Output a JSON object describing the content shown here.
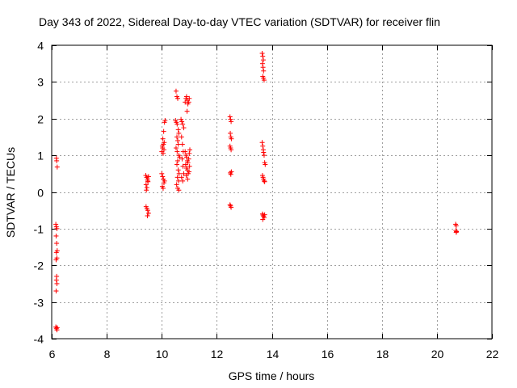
{
  "chart_data": {
    "type": "scatter",
    "title": "Day 343 of 2022, Sidereal Day-to-day VTEC variation (SDTVAR) for receiver flin",
    "xlabel": "GPS time / hours",
    "ylabel": "SDTVAR / TECUs",
    "xlim": [
      6,
      22
    ],
    "ylim": [
      -4,
      4
    ],
    "xticks": [
      6,
      8,
      10,
      12,
      14,
      16,
      18,
      20,
      22
    ],
    "yticks": [
      -4,
      -3,
      -2,
      -1,
      0,
      1,
      2,
      3,
      4
    ],
    "grid": true,
    "marker": "plus",
    "series": [
      {
        "name": "SDTVAR",
        "color": "#ff0000",
        "points": [
          [
            6.17,
            0.92
          ],
          [
            6.18,
            0.85
          ],
          [
            6.2,
            0.68
          ],
          [
            6.15,
            -0.88
          ],
          [
            6.17,
            -0.95
          ],
          [
            6.19,
            -1.0
          ],
          [
            6.16,
            -1.2
          ],
          [
            6.18,
            -1.4
          ],
          [
            6.2,
            -1.6
          ],
          [
            6.17,
            -1.65
          ],
          [
            6.19,
            -1.8
          ],
          [
            6.16,
            -1.85
          ],
          [
            6.18,
            -2.3
          ],
          [
            6.17,
            -2.4
          ],
          [
            6.19,
            -2.5
          ],
          [
            6.16,
            -2.7
          ],
          [
            6.15,
            -3.68
          ],
          [
            6.17,
            -3.72
          ],
          [
            6.19,
            -3.76
          ],
          [
            6.2,
            -3.7
          ],
          [
            9.42,
            0.45
          ],
          [
            9.45,
            0.4
          ],
          [
            9.48,
            0.35
          ],
          [
            9.5,
            0.28
          ],
          [
            9.43,
            0.2
          ],
          [
            9.46,
            0.12
          ],
          [
            9.49,
            0.3
          ],
          [
            9.52,
            0.42
          ],
          [
            9.44,
            0.05
          ],
          [
            9.43,
            -0.4
          ],
          [
            9.46,
            -0.45
          ],
          [
            9.49,
            -0.5
          ],
          [
            9.52,
            -0.58
          ],
          [
            9.48,
            -0.65
          ],
          [
            10.0,
            0.5
          ],
          [
            10.03,
            0.42
          ],
          [
            10.06,
            0.35
          ],
          [
            10.08,
            0.25
          ],
          [
            10.02,
            0.15
          ],
          [
            10.05,
            0.1
          ],
          [
            10.1,
            0.3
          ],
          [
            10.0,
            1.1
          ],
          [
            10.03,
            1.2
          ],
          [
            10.06,
            1.3
          ],
          [
            10.09,
            1.35
          ],
          [
            10.02,
            1.25
          ],
          [
            10.05,
            1.05
          ],
          [
            10.08,
            1.15
          ],
          [
            10.04,
            1.45
          ],
          [
            10.07,
            1.65
          ],
          [
            10.1,
            1.9
          ],
          [
            10.12,
            1.95
          ],
          [
            10.52,
            2.75
          ],
          [
            10.55,
            2.6
          ],
          [
            10.58,
            2.55
          ],
          [
            10.5,
            1.95
          ],
          [
            10.53,
            1.9
          ],
          [
            10.56,
            1.85
          ],
          [
            10.6,
            1.7
          ],
          [
            10.62,
            1.6
          ],
          [
            10.55,
            1.5
          ],
          [
            10.58,
            1.4
          ],
          [
            10.6,
            1.3
          ],
          [
            10.52,
            1.2
          ],
          [
            10.56,
            1.1
          ],
          [
            10.62,
            1.0
          ],
          [
            10.65,
            0.95
          ],
          [
            10.58,
            0.85
          ],
          [
            10.55,
            0.75
          ],
          [
            10.6,
            0.6
          ],
          [
            10.63,
            0.5
          ],
          [
            10.57,
            0.4
          ],
          [
            10.61,
            0.3
          ],
          [
            10.54,
            0.2
          ],
          [
            10.58,
            0.1
          ],
          [
            10.62,
            0.05
          ],
          [
            10.7,
            1.98
          ],
          [
            10.73,
            1.92
          ],
          [
            10.76,
            1.85
          ],
          [
            10.8,
            1.75
          ],
          [
            10.72,
            1.5
          ],
          [
            10.75,
            1.3
          ],
          [
            10.78,
            1.1
          ],
          [
            10.74,
            0.9
          ],
          [
            10.77,
            0.7
          ],
          [
            10.8,
            0.5
          ],
          [
            10.72,
            0.4
          ],
          [
            10.76,
            0.3
          ],
          [
            10.85,
            2.45
          ],
          [
            10.88,
            2.55
          ],
          [
            10.9,
            2.6
          ],
          [
            10.93,
            2.5
          ],
          [
            10.95,
            2.4
          ],
          [
            10.98,
            2.45
          ],
          [
            11.0,
            2.55
          ],
          [
            10.92,
            2.2
          ],
          [
            10.85,
            1.1
          ],
          [
            10.88,
            1.0
          ],
          [
            10.9,
            0.95
          ],
          [
            10.93,
            0.85
          ],
          [
            10.95,
            0.8
          ],
          [
            10.98,
            0.9
          ],
          [
            11.0,
            1.05
          ],
          [
            11.02,
            1.15
          ],
          [
            10.87,
            0.75
          ],
          [
            10.9,
            0.65
          ],
          [
            10.93,
            0.6
          ],
          [
            10.96,
            0.5
          ],
          [
            10.99,
            0.55
          ],
          [
            11.01,
            0.7
          ],
          [
            10.89,
            0.45
          ],
          [
            10.94,
            0.35
          ],
          [
            12.48,
            2.05
          ],
          [
            12.5,
            1.98
          ],
          [
            12.52,
            1.92
          ],
          [
            12.49,
            1.6
          ],
          [
            12.51,
            1.5
          ],
          [
            12.53,
            1.45
          ],
          [
            12.48,
            1.25
          ],
          [
            12.5,
            1.2
          ],
          [
            12.52,
            1.15
          ],
          [
            12.49,
            0.52
          ],
          [
            12.51,
            0.48
          ],
          [
            12.53,
            0.55
          ],
          [
            12.48,
            -0.35
          ],
          [
            12.5,
            -0.38
          ],
          [
            12.52,
            -0.42
          ],
          [
            13.65,
            3.78
          ],
          [
            13.67,
            3.7
          ],
          [
            13.69,
            3.6
          ],
          [
            13.66,
            3.5
          ],
          [
            13.68,
            3.4
          ],
          [
            13.7,
            3.3
          ],
          [
            13.67,
            3.15
          ],
          [
            13.7,
            3.1
          ],
          [
            13.72,
            3.05
          ],
          [
            13.65,
            1.35
          ],
          [
            13.67,
            1.25
          ],
          [
            13.69,
            1.15
          ],
          [
            13.7,
            1.08
          ],
          [
            13.72,
            1.0
          ],
          [
            13.74,
            0.8
          ],
          [
            13.76,
            0.75
          ],
          [
            13.66,
            0.45
          ],
          [
            13.68,
            0.4
          ],
          [
            13.7,
            0.35
          ],
          [
            13.72,
            0.3
          ],
          [
            13.74,
            0.28
          ],
          [
            13.66,
            -0.6
          ],
          [
            13.68,
            -0.63
          ],
          [
            13.7,
            -0.66
          ],
          [
            13.72,
            -0.7
          ],
          [
            13.74,
            -0.62
          ],
          [
            13.67,
            -0.75
          ],
          [
            20.68,
            -0.88
          ],
          [
            20.7,
            -0.92
          ],
          [
            20.69,
            -1.05
          ],
          [
            20.71,
            -1.08
          ],
          [
            20.7,
            -1.1
          ]
        ]
      }
    ]
  }
}
